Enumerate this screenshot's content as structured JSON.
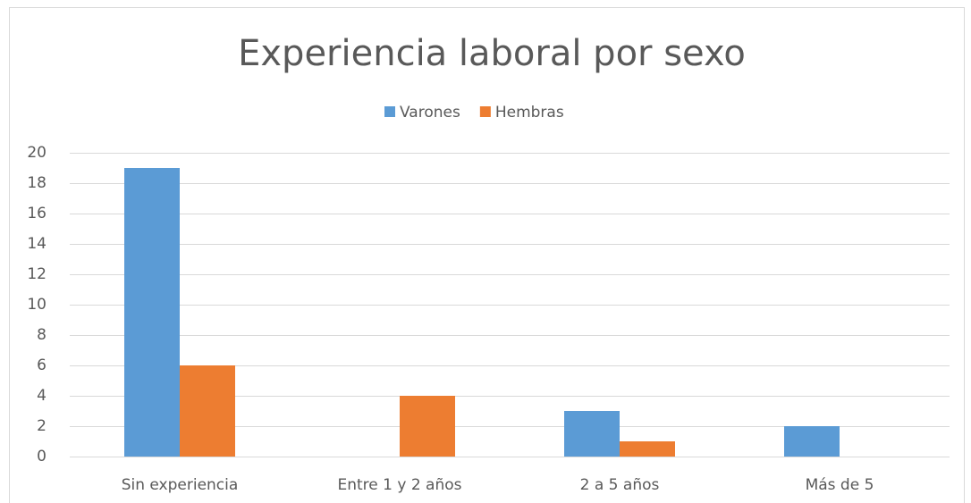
{
  "chart_data": {
    "type": "bar",
    "title": "Experiencia laboral por sexo",
    "categories": [
      "Sin experiencia",
      "Entre 1 y 2 años",
      "2 a 5 años",
      "Más de 5"
    ],
    "series": [
      {
        "name": "Varones",
        "color": "#5b9bd5",
        "values": [
          19,
          0,
          3,
          2
        ]
      },
      {
        "name": "Hembras",
        "color": "#ed7d31",
        "values": [
          6,
          4,
          1,
          0
        ]
      }
    ],
    "ylim": [
      0,
      20
    ],
    "yticks": [
      0,
      2,
      4,
      6,
      8,
      10,
      12,
      14,
      16,
      18,
      20
    ],
    "grid": true,
    "legend": "top"
  }
}
